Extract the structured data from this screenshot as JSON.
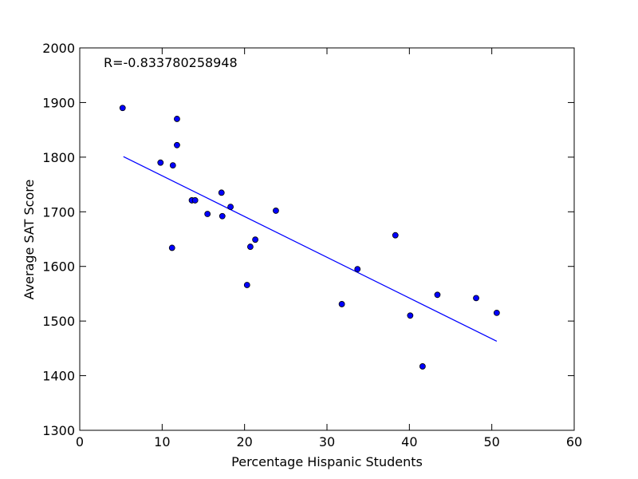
{
  "chart_data": {
    "type": "scatter",
    "xlabel": "Percentage Hispanic Students",
    "ylabel": "Average SAT Score",
    "annotation": "R=-0.833780258948",
    "color": "#0000ff",
    "x": [
      5.2,
      9.8,
      11.3,
      11.8,
      11.8,
      11.2,
      13.6,
      14.0,
      15.5,
      17.2,
      17.3,
      18.3,
      20.7,
      21.3,
      20.3,
      23.8,
      31.8,
      33.7,
      38.3,
      40.1,
      41.6,
      43.4,
      48.1,
      50.6
    ],
    "values": [
      1890,
      1790,
      1785,
      1870,
      1822,
      1634,
      1721,
      1721,
      1696,
      1735,
      1692,
      1709,
      1636,
      1649,
      1566,
      1702,
      1531,
      1595,
      1657,
      1510,
      1417,
      1548,
      1542,
      1515
    ],
    "fit_line": {
      "color": "#0000ff",
      "x": [
        5.3,
        50.6
      ],
      "values": [
        1801,
        1463
      ]
    },
    "xlim": [
      0,
      60
    ],
    "xticks": [
      0,
      10,
      20,
      30,
      40,
      50,
      60
    ],
    "ylim": [
      1300,
      2000
    ],
    "yticks": [
      1300,
      1400,
      1500,
      1600,
      1700,
      1800,
      1900,
      2000
    ]
  }
}
